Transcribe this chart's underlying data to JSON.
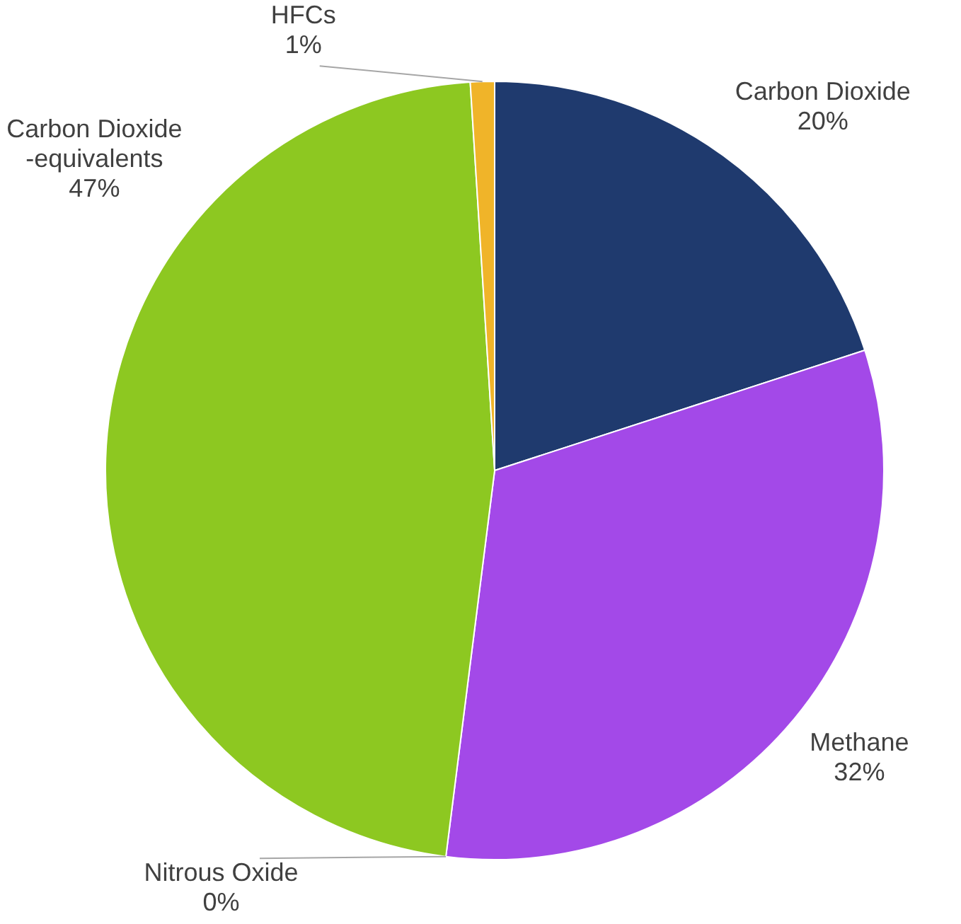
{
  "chart_data": {
    "type": "pie",
    "categories": [
      "Carbon Dioxide",
      "Methane",
      "Nitrous Oxide",
      "Carbon Dioxide -equivalents",
      "HFCs"
    ],
    "values": [
      20,
      32,
      0,
      47,
      1
    ],
    "value_labels": [
      "20%",
      "32%",
      "0%",
      "47%",
      "1%"
    ],
    "colors": [
      "#1f3a6e",
      "#a349e8",
      "#4a90d9",
      "#8dc821",
      "#f0b429"
    ],
    "legend": false
  }
}
